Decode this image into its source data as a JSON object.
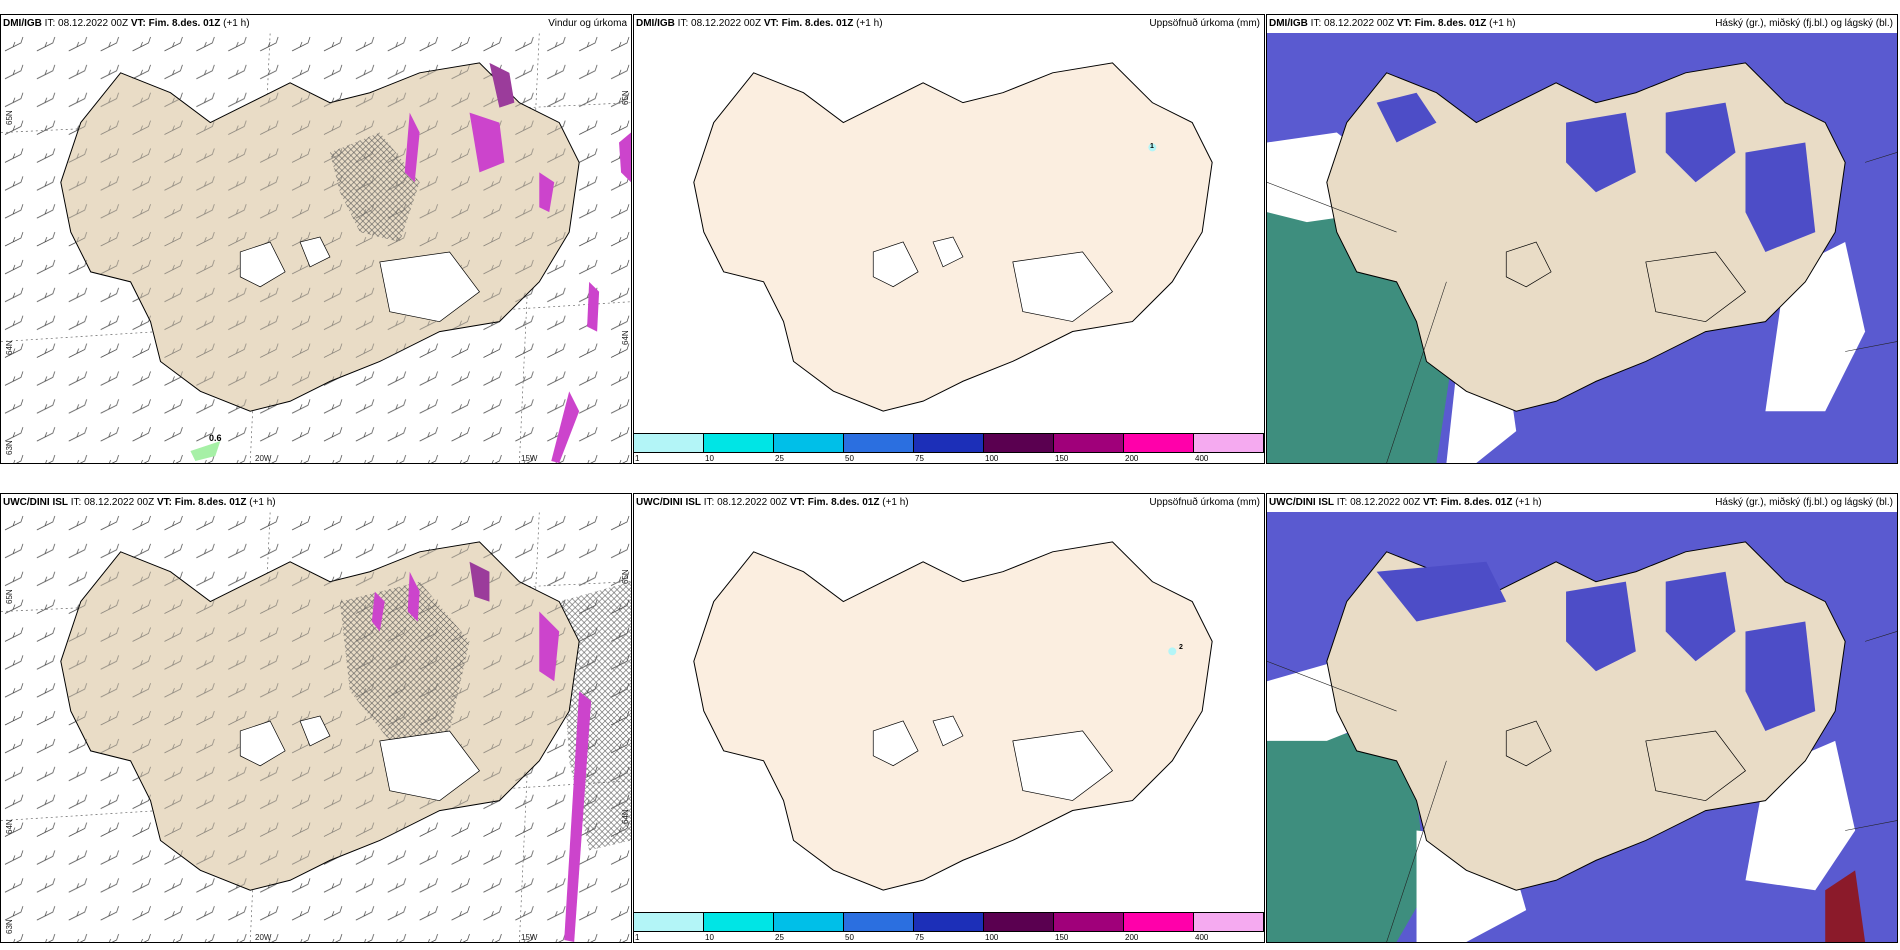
{
  "rows": [
    {
      "panels": [
        {
          "model": "DMI/IGB",
          "it": "IT: 08.12.2022 00Z",
          "vt": "VT: Fim. 8.des. 01Z",
          "lead": "(+1 h)",
          "title": "Vindur og úrkoma",
          "lat_labels": [
            "65N",
            "64N",
            "63N"
          ],
          "lat_labels_right": [
            "65N",
            "64N"
          ],
          "lon_labels": [
            "20W",
            "15W"
          ],
          "value_label": "0.6"
        },
        {
          "model": "DMI/IGB",
          "it": "IT: 08.12.2022 00Z",
          "vt": "VT: Fim. 8.des. 01Z",
          "lead": "(+1 h)",
          "title": "Uppsöfnuð úrkoma (mm)",
          "value_label": "1"
        },
        {
          "model": "DMI/IGB",
          "it": "IT: 08.12.2022 00Z",
          "vt": "VT: Fim. 8.des. 01Z",
          "lead": "(+1 h)",
          "title": "Háský (gr.), miðský (fj.bl.) og lágský (bl.)"
        }
      ]
    },
    {
      "panels": [
        {
          "model": "UWC/DINI ISL",
          "it": "IT: 08.12.2022 00Z",
          "vt": "VT: Fim. 8.des. 01Z",
          "lead": "(+1 h)",
          "title": "",
          "lat_labels": [
            "65N",
            "64N",
            "63N"
          ],
          "lat_labels_right": [
            "65N",
            "64N"
          ],
          "lon_labels": [
            "20W",
            "15W"
          ]
        },
        {
          "model": "UWC/DINI ISL",
          "it": "IT: 08.12.2022 00Z",
          "vt": "VT: Fim. 8.des. 01Z",
          "lead": "(+1 h)",
          "title": "Uppsöfnuð úrkoma (mm)",
          "value_label": "2"
        },
        {
          "model": "UWC/DINI ISL",
          "it": "IT: 08.12.2022 00Z",
          "vt": "VT: Fim. 8.des. 01Z",
          "lead": "(+1 h)",
          "title": "Háský (gr.), miðský (fj.bl.) og lágský (bl.)"
        }
      ]
    }
  ],
  "precip_colorbar": {
    "ticks": [
      "1",
      "10",
      "25",
      "50",
      "75",
      "100",
      "150",
      "200",
      "400"
    ],
    "colors": [
      "#b3f5f7",
      "#00e5e5",
      "#00bfe8",
      "#2b6fe0",
      "#1c2fb8",
      "#5a0050",
      "#a0007a",
      "#ff00aa",
      "#f5aaf0"
    ]
  },
  "colors": {
    "land": "#e9dcc6",
    "land_precip": "#fbeee0",
    "high_cloud": "#3e8e7e",
    "mid_cloud": "#5f5fd0",
    "low_cloud": "#4d4dc7",
    "precip": "#cc44cc"
  }
}
